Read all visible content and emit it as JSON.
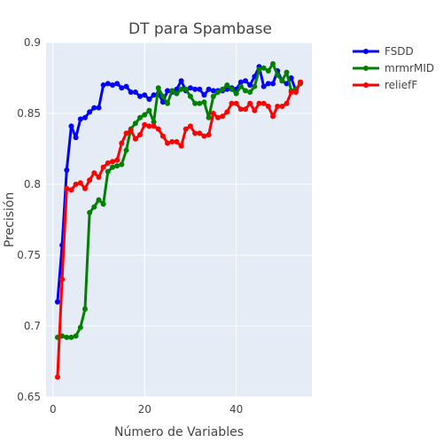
{
  "chart_data": {
    "type": "line",
    "title": "DT para Spambase",
    "xlabel": "Número de Variables",
    "ylabel": "Precisión",
    "xlim": [
      -1.5,
      56.5
    ],
    "ylim": [
      0.65,
      0.9
    ],
    "xticks": [
      0,
      20,
      40
    ],
    "yticks": [
      0.65,
      0.7,
      0.75,
      0.8,
      0.85,
      0.9
    ],
    "grid": true,
    "legend": "top-right",
    "x": [
      1,
      2,
      3,
      4,
      5,
      6,
      7,
      8,
      9,
      10,
      11,
      12,
      13,
      14,
      15,
      16,
      17,
      18,
      19,
      20,
      21,
      22,
      23,
      24,
      25,
      26,
      27,
      28,
      29,
      30,
      31,
      32,
      33,
      34,
      35,
      36,
      37,
      38,
      39,
      40,
      41,
      42,
      43,
      44,
      45,
      46,
      47,
      48,
      49,
      50,
      51,
      52,
      53,
      54
    ],
    "series": [
      {
        "name": "FSDD",
        "color": "#0000ff",
        "values": [
          0.717,
          0.757,
          0.81,
          0.841,
          0.833,
          0.846,
          0.847,
          0.851,
          0.854,
          0.854,
          0.87,
          0.871,
          0.87,
          0.871,
          0.868,
          0.869,
          0.865,
          0.865,
          0.862,
          0.863,
          0.86,
          0.863,
          0.864,
          0.858,
          0.866,
          0.865,
          0.867,
          0.873,
          0.866,
          0.868,
          0.867,
          0.867,
          0.863,
          0.867,
          0.866,
          0.866,
          0.866,
          0.867,
          0.868,
          0.867,
          0.872,
          0.873,
          0.87,
          0.876,
          0.883,
          0.869,
          0.871,
          0.871,
          0.88,
          0.873,
          0.871,
          0.875,
          0.866,
          0.872
        ]
      },
      {
        "name": "mrmrMID",
        "color": "#008000",
        "values": [
          0.692,
          0.693,
          0.692,
          0.692,
          0.693,
          0.699,
          0.712,
          0.78,
          0.784,
          0.789,
          0.786,
          0.809,
          0.812,
          0.813,
          0.814,
          0.824,
          0.839,
          0.843,
          0.847,
          0.849,
          0.852,
          0.844,
          0.868,
          0.862,
          0.857,
          0.866,
          0.864,
          0.867,
          0.867,
          0.862,
          0.857,
          0.857,
          0.858,
          0.847,
          0.862,
          0.865,
          0.867,
          0.87,
          0.867,
          0.864,
          0.869,
          0.866,
          0.865,
          0.869,
          0.881,
          0.882,
          0.88,
          0.885,
          0.877,
          0.873,
          0.879,
          0.866,
          0.867,
          0.871
        ]
      },
      {
        "name": "reliefF",
        "color": "#ff0000",
        "values": [
          0.664,
          0.733,
          0.797,
          0.796,
          0.8,
          0.801,
          0.797,
          0.803,
          0.808,
          0.805,
          0.812,
          0.815,
          0.816,
          0.817,
          0.829,
          0.836,
          0.838,
          0.832,
          0.835,
          0.842,
          0.841,
          0.841,
          0.839,
          0.834,
          0.829,
          0.83,
          0.83,
          0.827,
          0.839,
          0.841,
          0.836,
          0.836,
          0.834,
          0.835,
          0.85,
          0.847,
          0.848,
          0.851,
          0.857,
          0.857,
          0.853,
          0.853,
          0.857,
          0.852,
          0.857,
          0.857,
          0.855,
          0.848,
          0.855,
          0.855,
          0.857,
          0.865,
          0.865,
          0.872
        ]
      }
    ]
  }
}
